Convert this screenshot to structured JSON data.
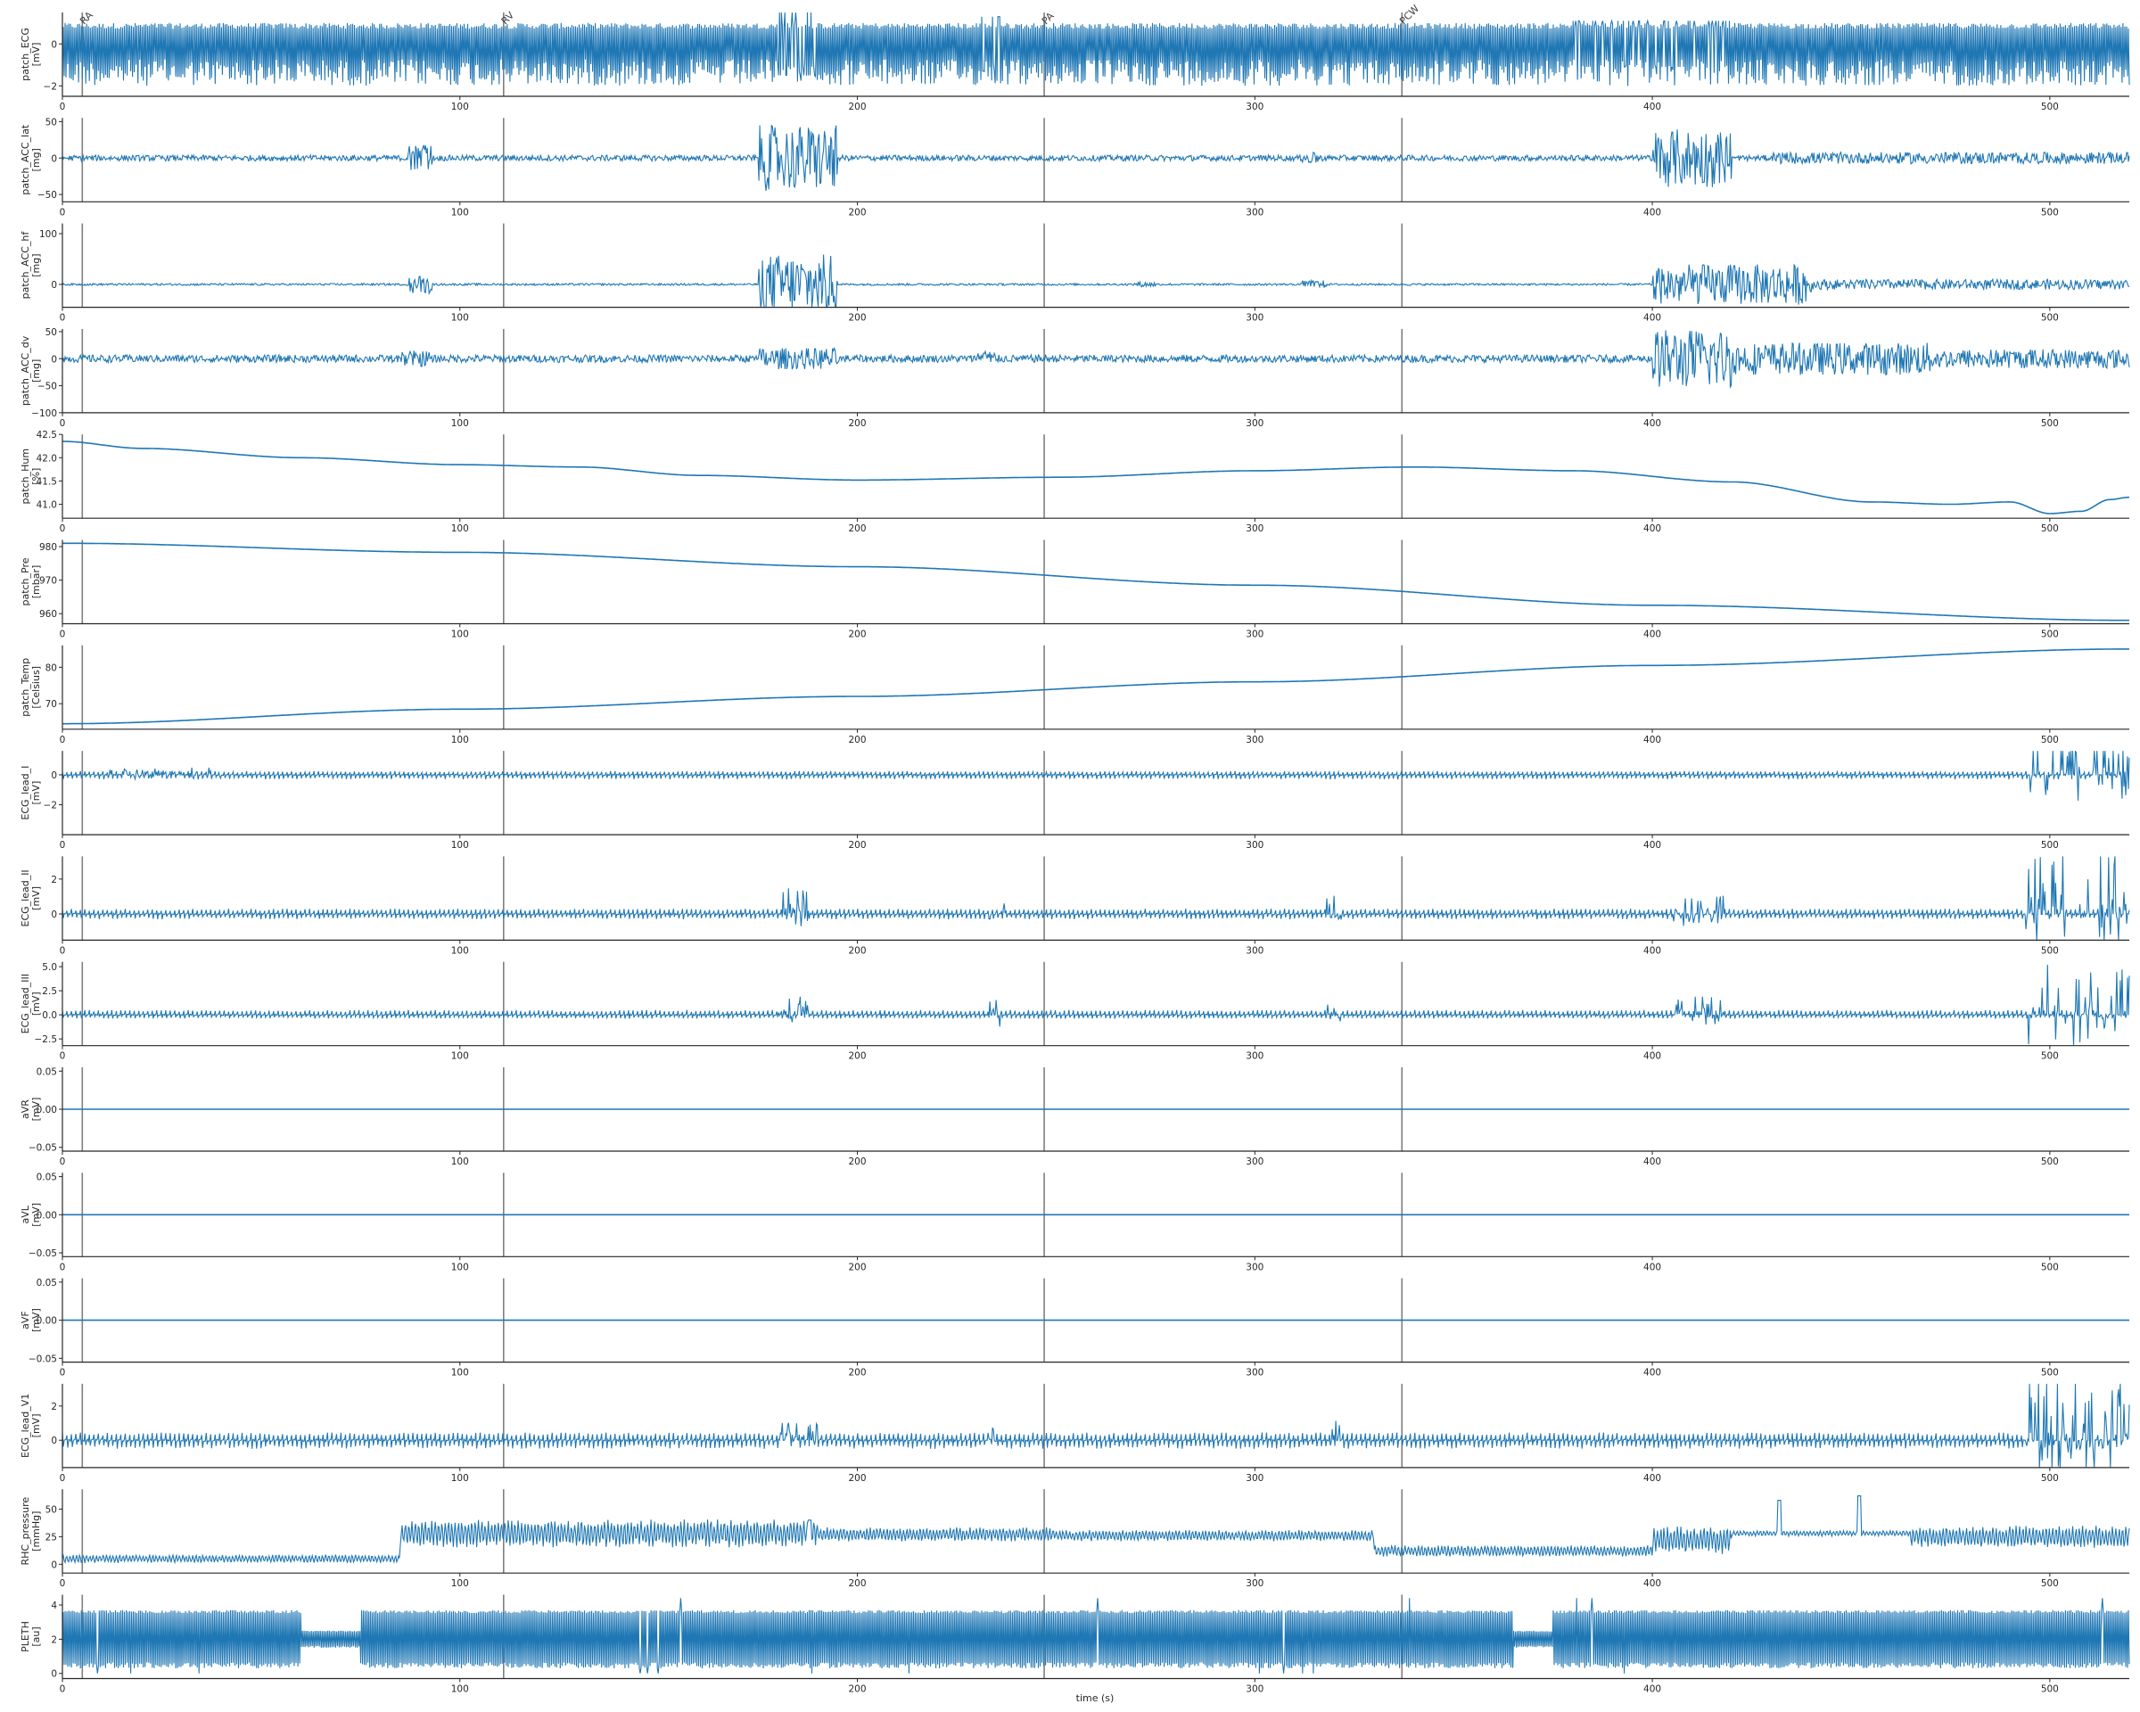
{
  "figure": {
    "xlabel": "time (s)"
  },
  "chart_data": {
    "type": "line",
    "x_range": [
      0,
      520
    ],
    "x_ticks": [
      0,
      100,
      200,
      300,
      400,
      500
    ],
    "line_color": "#1f77b4",
    "marker_color": "#7f7f7f",
    "grid": false,
    "markers": [
      {
        "t": 5,
        "label": "RA"
      },
      {
        "t": 111,
        "label": "RV"
      },
      {
        "t": 247,
        "label": "PA"
      },
      {
        "t": 337,
        "label": "PCW"
      },
      {
        "t": 5,
        "label": ""
      },
      {
        "t": 111,
        "label": ""
      },
      {
        "t": 247,
        "label": ""
      },
      {
        "t": 337,
        "label": ""
      }
    ],
    "series": [
      {
        "name": "patch_ECG",
        "unit": "[mV]",
        "ylim": [
          -2.5,
          1.5
        ],
        "yticks": [
          -2,
          0
        ],
        "ytick_labels": [
          "−2",
          "0"
        ],
        "baseline": 0.1,
        "pattern": "ecg_dense",
        "amp": 0.9,
        "neg": 2.1,
        "bursts": [
          [
            180,
            190,
            1.5
          ],
          [
            230,
            236,
            1.3
          ],
          [
            380,
            420,
            1.1
          ]
        ]
      },
      {
        "name": "patch_ACC_lat",
        "unit": "[mg]",
        "ylim": [
          -60,
          55
        ],
        "yticks": [
          -50,
          0,
          50
        ],
        "ytick_labels": [
          "−50",
          "0",
          "50"
        ],
        "baseline": 0,
        "pattern": "noise",
        "amp": 4,
        "bursts": [
          [
            87,
            93,
            20
          ],
          [
            175,
            195,
            45
          ],
          [
            312,
            316,
            8
          ],
          [
            400,
            420,
            40
          ],
          [
            430,
            520,
            8
          ]
        ]
      },
      {
        "name": "patch_ACC_hf",
        "unit": "[mg]",
        "ylim": [
          -45,
          120
        ],
        "yticks": [
          0,
          100
        ],
        "ytick_labels": [
          "0",
          "100"
        ],
        "baseline": 0,
        "pattern": "noise",
        "amp": 2,
        "bursts": [
          [
            87,
            93,
            18
          ],
          [
            175,
            195,
            60
          ],
          [
            270,
            275,
            5
          ],
          [
            312,
            318,
            8
          ],
          [
            400,
            440,
            40
          ],
          [
            440,
            520,
            10
          ]
        ]
      },
      {
        "name": "patch_ACC_dv",
        "unit": "[mg]",
        "ylim": [
          -100,
          55
        ],
        "yticks": [
          -100,
          -50,
          0,
          50
        ],
        "ytick_labels": [
          "−100",
          "−50",
          "0",
          "50"
        ],
        "baseline": 0,
        "pattern": "noise",
        "amp": 7,
        "bursts": [
          [
            85,
            93,
            15
          ],
          [
            175,
            195,
            20
          ],
          [
            230,
            235,
            15
          ],
          [
            400,
            420,
            55
          ],
          [
            420,
            470,
            30
          ],
          [
            470,
            520,
            18
          ]
        ]
      },
      {
        "name": "patch_Hum",
        "unit": "[%]",
        "ylim": [
          40.7,
          42.5
        ],
        "yticks": [
          41.0,
          41.5,
          42.0,
          42.5
        ],
        "ytick_labels": [
          "41.0",
          "41.5",
          "42.0",
          "42.5"
        ],
        "pattern": "curve",
        "points": [
          [
            0,
            42.35
          ],
          [
            20,
            42.2
          ],
          [
            60,
            42.0
          ],
          [
            100,
            41.85
          ],
          [
            130,
            41.8
          ],
          [
            160,
            41.62
          ],
          [
            200,
            41.52
          ],
          [
            250,
            41.58
          ],
          [
            300,
            41.72
          ],
          [
            340,
            41.8
          ],
          [
            380,
            41.72
          ],
          [
            420,
            41.48
          ],
          [
            455,
            41.05
          ],
          [
            475,
            41.0
          ],
          [
            490,
            41.05
          ],
          [
            500,
            40.8
          ],
          [
            508,
            40.85
          ],
          [
            515,
            41.1
          ],
          [
            520,
            41.15
          ]
        ]
      },
      {
        "name": "patch_Pre",
        "unit": "[mbar]",
        "ylim": [
          957,
          982
        ],
        "yticks": [
          960,
          970,
          980
        ],
        "ytick_labels": [
          "960",
          "970",
          "980"
        ],
        "pattern": "curve",
        "points": [
          [
            0,
            981
          ],
          [
            100,
            978.3
          ],
          [
            200,
            974
          ],
          [
            300,
            968.5
          ],
          [
            400,
            962.5
          ],
          [
            520,
            958
          ]
        ]
      },
      {
        "name": "patch_Temp",
        "unit": "[Celsius]",
        "ylim": [
          63,
          86
        ],
        "yticks": [
          70,
          80
        ],
        "ytick_labels": [
          "70",
          "80"
        ],
        "pattern": "curve",
        "points": [
          [
            0,
            64.5
          ],
          [
            100,
            68.5
          ],
          [
            200,
            72
          ],
          [
            300,
            76
          ],
          [
            400,
            80.5
          ],
          [
            520,
            85
          ]
        ]
      },
      {
        "name": "ECG_lead_I",
        "unit": "[mV]",
        "ylim": [
          -4,
          1.6
        ],
        "yticks": [
          -2,
          0
        ],
        "ytick_labels": [
          "−2",
          "0"
        ],
        "baseline": 0,
        "pattern": "ecg_small",
        "amp": 0.25,
        "neg": 0.3,
        "bursts": [
          [
            10,
            40,
            0.4
          ],
          [
            495,
            520,
            2.5
          ]
        ]
      },
      {
        "name": "ECG_lead_II",
        "unit": "[mV]",
        "ylim": [
          -1.5,
          3.3
        ],
        "yticks": [
          0,
          2
        ],
        "ytick_labels": [
          "0",
          "2"
        ],
        "baseline": 0,
        "pattern": "ecg_small",
        "amp": 0.3,
        "neg": 0.3,
        "bursts": [
          [
            180,
            188,
            1.2
          ],
          [
            233,
            237,
            1.2
          ],
          [
            318,
            322,
            1.0
          ],
          [
            405,
            418,
            1.0
          ],
          [
            494,
            520,
            2.8
          ]
        ]
      },
      {
        "name": "ECG_lead_III",
        "unit": "[mV]",
        "ylim": [
          -3.2,
          5.5
        ],
        "yticks": [
          -2.5,
          0.0,
          2.5,
          5.0
        ],
        "ytick_labels": [
          "−2.5",
          "0.0",
          "2.5",
          "5.0"
        ],
        "baseline": 0,
        "pattern": "ecg_small",
        "amp": 0.5,
        "neg": 0.4,
        "bursts": [
          [
            180,
            188,
            1.5
          ],
          [
            233,
            237,
            1.8
          ],
          [
            318,
            322,
            1.0
          ],
          [
            405,
            418,
            1.5
          ],
          [
            494,
            520,
            4.5
          ]
        ]
      },
      {
        "name": "aVR",
        "unit": "[mV]",
        "ylim": [
          -0.055,
          0.055
        ],
        "yticks": [
          -0.05,
          0.0,
          0.05
        ],
        "ytick_labels": [
          "−0.05",
          "0.00",
          "0.05"
        ],
        "pattern": "flat",
        "baseline": 0
      },
      {
        "name": "aVL",
        "unit": "[mV]",
        "ylim": [
          -0.055,
          0.055
        ],
        "yticks": [
          -0.05,
          0.0,
          0.05
        ],
        "ytick_labels": [
          "−0.05",
          "0.00",
          "0.05"
        ],
        "pattern": "flat",
        "baseline": 0
      },
      {
        "name": "aVF",
        "unit": "[mV]",
        "ylim": [
          -0.055,
          0.055
        ],
        "yticks": [
          -0.05,
          0.0,
          0.05
        ],
        "ytick_labels": [
          "−0.05",
          "0.00",
          "0.05"
        ],
        "pattern": "flat",
        "baseline": 0
      },
      {
        "name": "ECG_lead_V1",
        "unit": "[mV]",
        "ylim": [
          -1.6,
          3.3
        ],
        "yticks": [
          0,
          2
        ],
        "ytick_labels": [
          "0",
          "2"
        ],
        "baseline": 0,
        "pattern": "ecg_small",
        "amp": 0.45,
        "neg": 0.5,
        "bursts": [
          [
            180,
            190,
            0.8
          ],
          [
            233,
            237,
            0.8
          ],
          [
            318,
            322,
            1.0
          ],
          [
            494,
            520,
            3.0
          ]
        ]
      },
      {
        "name": "RHC_pressure",
        "unit": "[mmHg]",
        "ylim": [
          -8,
          68
        ],
        "yticks": [
          0,
          25,
          50
        ],
        "ytick_labels": [
          "0",
          "25",
          "50"
        ],
        "pattern": "pressure",
        "segments": [
          [
            0,
            85,
            5,
            3
          ],
          [
            85,
            190,
            28,
            10
          ],
          [
            190,
            250,
            27,
            5
          ],
          [
            250,
            330,
            26,
            4
          ],
          [
            330,
            400,
            12,
            4
          ],
          [
            400,
            420,
            22,
            10
          ],
          [
            420,
            465,
            28,
            2
          ],
          [
            465,
            520,
            25,
            8
          ]
        ],
        "spikes": [
          [
            432,
            58
          ],
          [
            452,
            62
          ],
          [
            188,
            40
          ]
        ]
      },
      {
        "name": "PLETH",
        "unit": "[au]",
        "ylim": [
          -0.3,
          4.6
        ],
        "yticks": [
          0,
          2,
          4
        ],
        "ytick_labels": [
          "0",
          "2",
          "4"
        ],
        "pattern": "pleth",
        "baseline": 2.0,
        "amp": 1.7,
        "gaps": [
          [
            60,
            75
          ],
          [
            365,
            375
          ]
        ]
      }
    ]
  }
}
